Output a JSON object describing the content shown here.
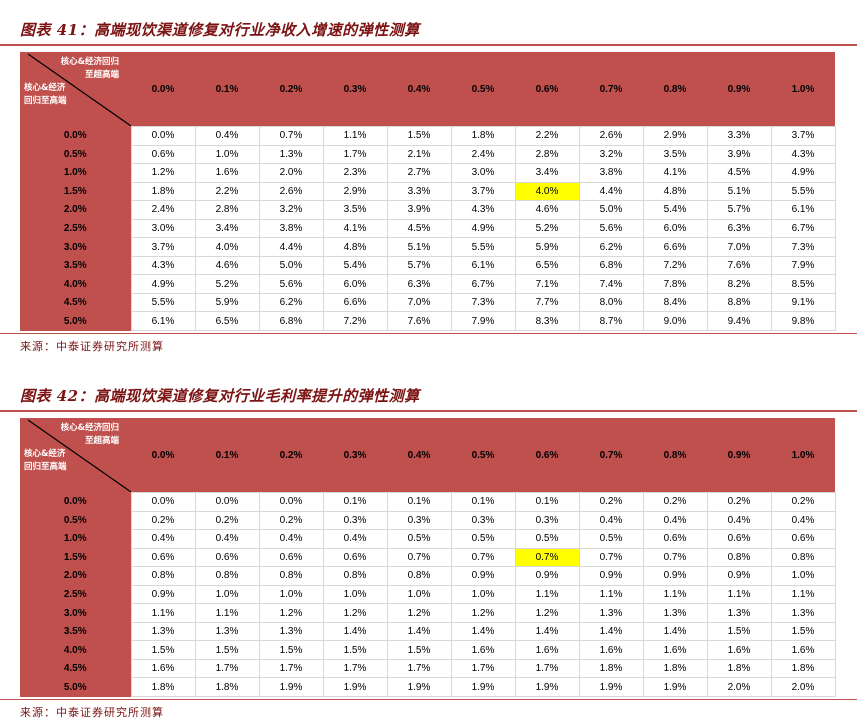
{
  "colors": {
    "accent": "#c0504d",
    "title_text": "#7b1313",
    "highlight": "#ffff00"
  },
  "tables": [
    {
      "title": "图表 41：高端现饮渠道修复对行业净收入增速的弹性测算",
      "corner_top": [
        "核心&经济回归",
        "至超高端"
      ],
      "corner_bottom": [
        "核心&经济",
        "回归至高端"
      ],
      "col_headers": [
        "0.0%",
        "0.1%",
        "0.2%",
        "0.3%",
        "0.4%",
        "0.5%",
        "0.6%",
        "0.7%",
        "0.8%",
        "0.9%",
        "1.0%"
      ],
      "row_headers": [
        "0.0%",
        "0.5%",
        "1.0%",
        "1.5%",
        "2.0%",
        "2.5%",
        "3.0%",
        "3.5%",
        "4.0%",
        "4.5%",
        "5.0%"
      ],
      "rows": [
        [
          "0.0%",
          "0.4%",
          "0.7%",
          "1.1%",
          "1.5%",
          "1.8%",
          "2.2%",
          "2.6%",
          "2.9%",
          "3.3%",
          "3.7%"
        ],
        [
          "0.6%",
          "1.0%",
          "1.3%",
          "1.7%",
          "2.1%",
          "2.4%",
          "2.8%",
          "3.2%",
          "3.5%",
          "3.9%",
          "4.3%"
        ],
        [
          "1.2%",
          "1.6%",
          "2.0%",
          "2.3%",
          "2.7%",
          "3.0%",
          "3.4%",
          "3.8%",
          "4.1%",
          "4.5%",
          "4.9%"
        ],
        [
          "1.8%",
          "2.2%",
          "2.6%",
          "2.9%",
          "3.3%",
          "3.7%",
          "4.0%",
          "4.4%",
          "4.8%",
          "5.1%",
          "5.5%"
        ],
        [
          "2.4%",
          "2.8%",
          "3.2%",
          "3.5%",
          "3.9%",
          "4.3%",
          "4.6%",
          "5.0%",
          "5.4%",
          "5.7%",
          "6.1%"
        ],
        [
          "3.0%",
          "3.4%",
          "3.8%",
          "4.1%",
          "4.5%",
          "4.9%",
          "5.2%",
          "5.6%",
          "6.0%",
          "6.3%",
          "6.7%"
        ],
        [
          "3.7%",
          "4.0%",
          "4.4%",
          "4.8%",
          "5.1%",
          "5.5%",
          "5.9%",
          "6.2%",
          "6.6%",
          "7.0%",
          "7.3%"
        ],
        [
          "4.3%",
          "4.6%",
          "5.0%",
          "5.4%",
          "5.7%",
          "6.1%",
          "6.5%",
          "6.8%",
          "7.2%",
          "7.6%",
          "7.9%"
        ],
        [
          "4.9%",
          "5.2%",
          "5.6%",
          "6.0%",
          "6.3%",
          "6.7%",
          "7.1%",
          "7.4%",
          "7.8%",
          "8.2%",
          "8.5%"
        ],
        [
          "5.5%",
          "5.9%",
          "6.2%",
          "6.6%",
          "7.0%",
          "7.3%",
          "7.7%",
          "8.0%",
          "8.4%",
          "8.8%",
          "9.1%"
        ],
        [
          "6.1%",
          "6.5%",
          "6.8%",
          "7.2%",
          "7.6%",
          "7.9%",
          "8.3%",
          "8.7%",
          "9.0%",
          "9.4%",
          "9.8%"
        ]
      ],
      "highlight": {
        "row": 3,
        "col": 6
      },
      "source": "来源：中泰证券研究所测算"
    },
    {
      "title": "图表 42：高端现饮渠道修复对行业毛利率提升的弹性测算",
      "corner_top": [
        "核心&经济回归",
        "至超高端"
      ],
      "corner_bottom": [
        "核心&经济",
        "回归至高端"
      ],
      "col_headers": [
        "0.0%",
        "0.1%",
        "0.2%",
        "0.3%",
        "0.4%",
        "0.5%",
        "0.6%",
        "0.7%",
        "0.8%",
        "0.9%",
        "1.0%"
      ],
      "row_headers": [
        "0.0%",
        "0.5%",
        "1.0%",
        "1.5%",
        "2.0%",
        "2.5%",
        "3.0%",
        "3.5%",
        "4.0%",
        "4.5%",
        "5.0%"
      ],
      "rows": [
        [
          "0.0%",
          "0.0%",
          "0.0%",
          "0.1%",
          "0.1%",
          "0.1%",
          "0.1%",
          "0.2%",
          "0.2%",
          "0.2%",
          "0.2%"
        ],
        [
          "0.2%",
          "0.2%",
          "0.2%",
          "0.3%",
          "0.3%",
          "0.3%",
          "0.3%",
          "0.4%",
          "0.4%",
          "0.4%",
          "0.4%"
        ],
        [
          "0.4%",
          "0.4%",
          "0.4%",
          "0.4%",
          "0.5%",
          "0.5%",
          "0.5%",
          "0.5%",
          "0.6%",
          "0.6%",
          "0.6%"
        ],
        [
          "0.6%",
          "0.6%",
          "0.6%",
          "0.6%",
          "0.7%",
          "0.7%",
          "0.7%",
          "0.7%",
          "0.7%",
          "0.8%",
          "0.8%"
        ],
        [
          "0.8%",
          "0.8%",
          "0.8%",
          "0.8%",
          "0.8%",
          "0.9%",
          "0.9%",
          "0.9%",
          "0.9%",
          "0.9%",
          "1.0%"
        ],
        [
          "0.9%",
          "1.0%",
          "1.0%",
          "1.0%",
          "1.0%",
          "1.0%",
          "1.1%",
          "1.1%",
          "1.1%",
          "1.1%",
          "1.1%"
        ],
        [
          "1.1%",
          "1.1%",
          "1.2%",
          "1.2%",
          "1.2%",
          "1.2%",
          "1.2%",
          "1.3%",
          "1.3%",
          "1.3%",
          "1.3%"
        ],
        [
          "1.3%",
          "1.3%",
          "1.3%",
          "1.4%",
          "1.4%",
          "1.4%",
          "1.4%",
          "1.4%",
          "1.4%",
          "1.5%",
          "1.5%"
        ],
        [
          "1.5%",
          "1.5%",
          "1.5%",
          "1.5%",
          "1.5%",
          "1.6%",
          "1.6%",
          "1.6%",
          "1.6%",
          "1.6%",
          "1.6%"
        ],
        [
          "1.6%",
          "1.7%",
          "1.7%",
          "1.7%",
          "1.7%",
          "1.7%",
          "1.7%",
          "1.8%",
          "1.8%",
          "1.8%",
          "1.8%"
        ],
        [
          "1.8%",
          "1.8%",
          "1.9%",
          "1.9%",
          "1.9%",
          "1.9%",
          "1.9%",
          "1.9%",
          "1.9%",
          "2.0%",
          "2.0%"
        ]
      ],
      "highlight": {
        "row": 3,
        "col": 6
      },
      "source": "来源：中泰证券研究所测算"
    }
  ]
}
